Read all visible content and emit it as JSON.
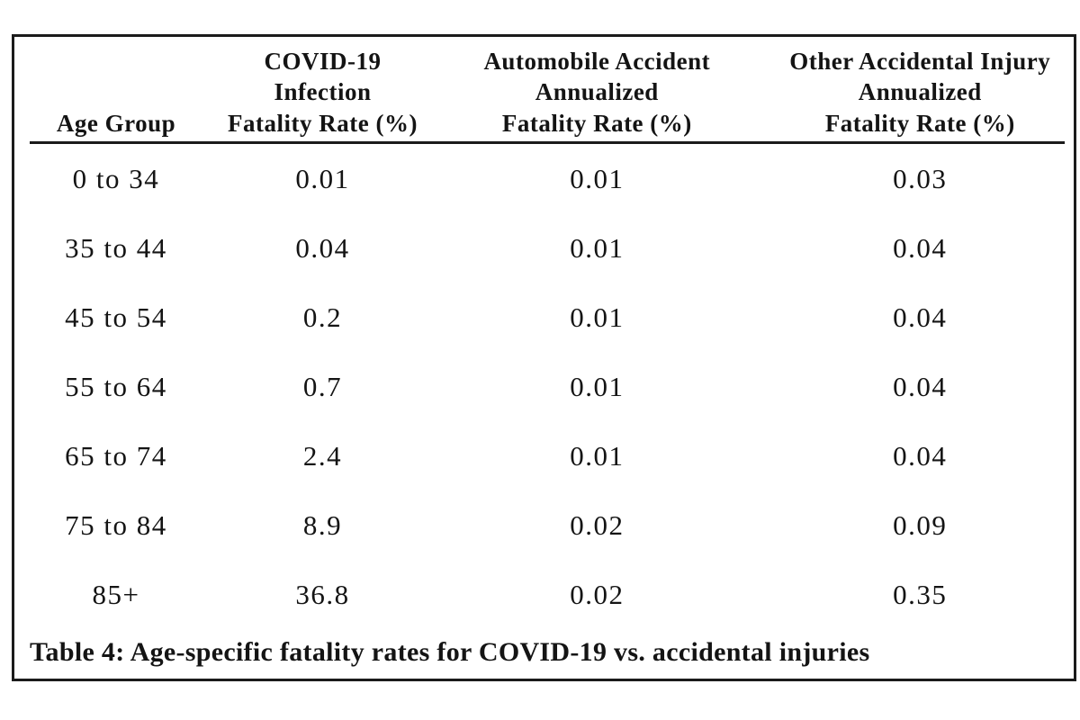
{
  "page": {
    "background": "#ffffff",
    "border_color": "#1b1b1b",
    "text_color": "#141414"
  },
  "table": {
    "headers": [
      {
        "lines": [
          "Age Group"
        ]
      },
      {
        "lines": [
          "COVID-19",
          "Infection",
          "Fatality Rate (%)"
        ]
      },
      {
        "lines": [
          "Automobile Accident",
          "Annualized",
          "Fatality Rate (%)"
        ]
      },
      {
        "lines": [
          "Other Accidental Injury",
          "Annualized",
          "Fatality Rate (%)"
        ]
      }
    ],
    "rows": [
      [
        "0 to 34",
        "0.01",
        "0.01",
        "0.03"
      ],
      [
        "35 to 44",
        "0.04",
        "0.01",
        "0.04"
      ],
      [
        "45 to 54",
        "0.2",
        "0.01",
        "0.04"
      ],
      [
        "55 to 64",
        "0.7",
        "0.01",
        "0.04"
      ],
      [
        "65 to 74",
        "2.4",
        "0.01",
        "0.04"
      ],
      [
        "75 to 84",
        "8.9",
        "0.02",
        "0.09"
      ],
      [
        "85+",
        "36.8",
        "0.02",
        "0.35"
      ]
    ],
    "caption": "Table 4: Age-specific fatality rates for COVID-19 vs. accidental injuries"
  }
}
